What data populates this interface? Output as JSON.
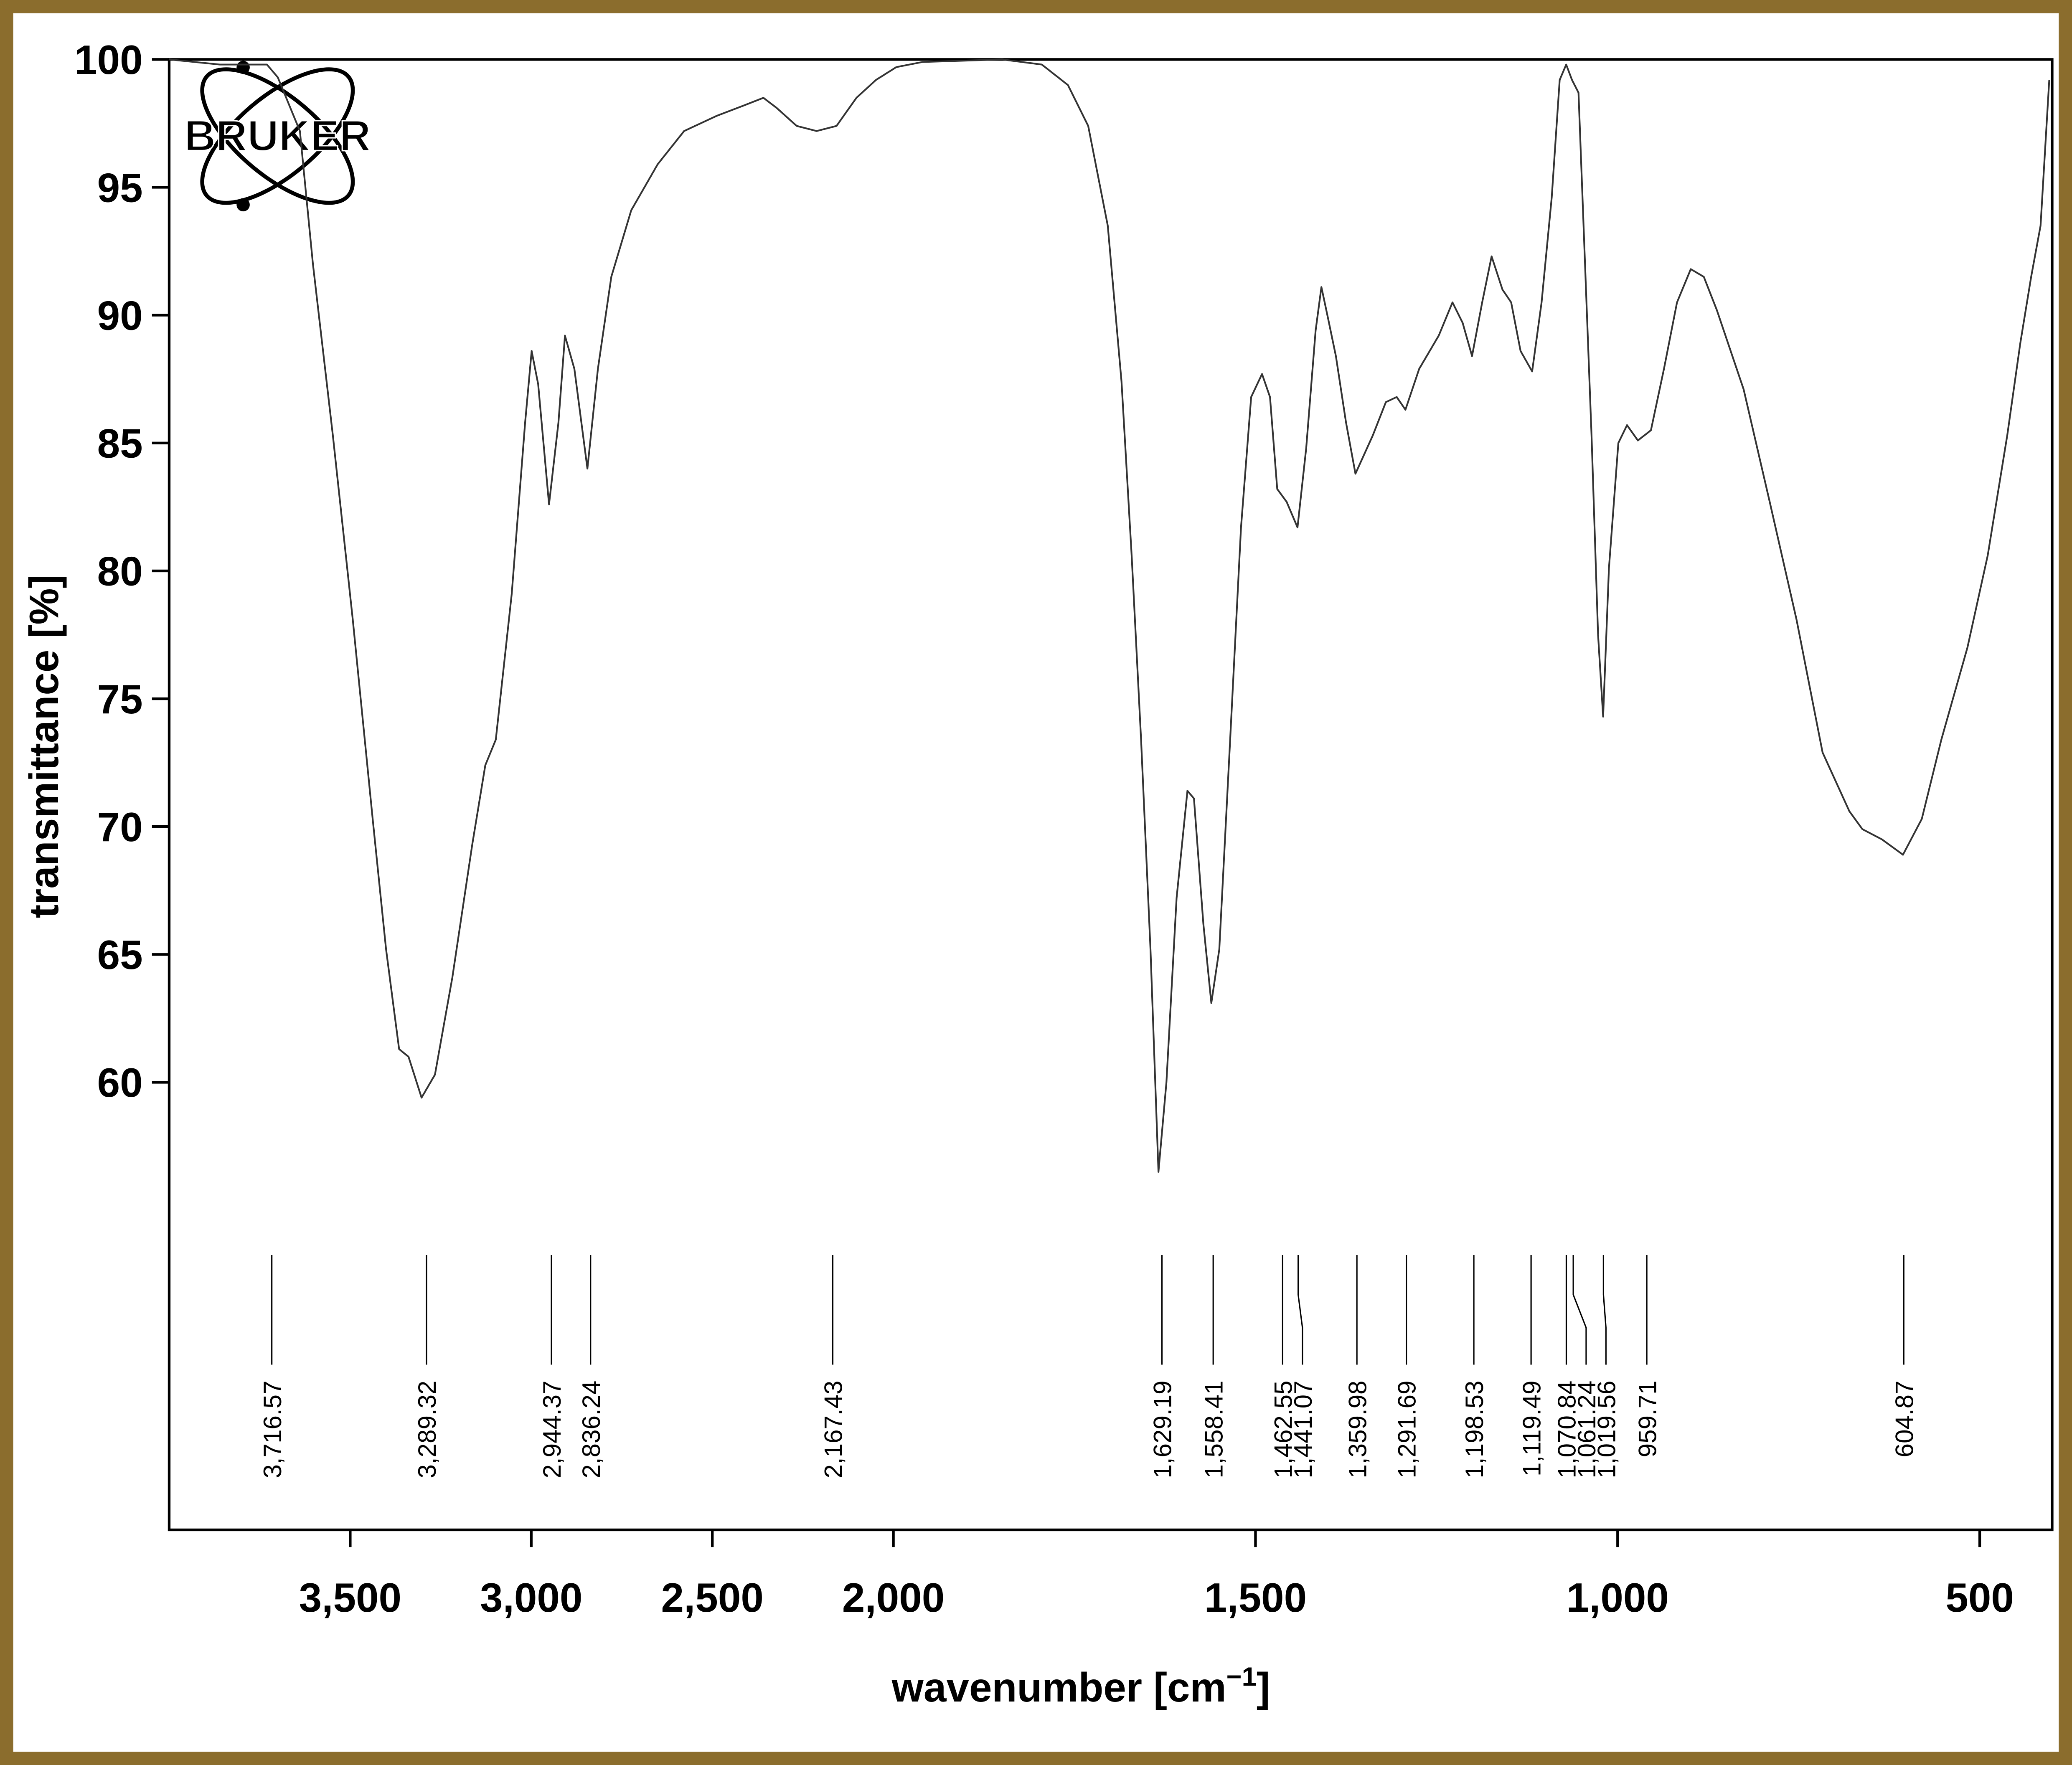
{
  "logo": "BRUKER",
  "chart_data": {
    "type": "line",
    "x_label_parts": [
      "wavenumber [cm",
      "−1",
      "]"
    ],
    "y_label": "transmittance [%]",
    "color": "#333333",
    "xlim": [
      4000,
      400
    ],
    "x_axis_compression": {
      "above": 2000,
      "factor": 0.5
    },
    "xticks": [
      {
        "value": 3500,
        "label": "3,500"
      },
      {
        "value": 3000,
        "label": "3,000"
      },
      {
        "value": 2500,
        "label": "2,500"
      },
      {
        "value": 2000,
        "label": "2,000"
      },
      {
        "value": 1500,
        "label": "1,500"
      },
      {
        "value": 1000,
        "label": "1,000"
      },
      500
    ],
    "ylim": [
      42.5,
      100
    ],
    "yticks": [
      60,
      65,
      70,
      75,
      80,
      85,
      90,
      95,
      100
    ],
    "peaks": [
      {
        "value": 3716.57,
        "label": "3,716.57"
      },
      {
        "value": 3289.32,
        "label": "3,289.32"
      },
      {
        "value": 2944.37,
        "label": "2,944.37"
      },
      {
        "value": 2836.24,
        "label": "2,836.24"
      },
      {
        "value": 2167.43,
        "label": "2,167.43"
      },
      {
        "value": 1629.19,
        "label": "1,629.19"
      },
      {
        "value": 1558.41,
        "label": "1,558.41"
      },
      {
        "value": 1462.55,
        "label": "1,462.55"
      },
      {
        "value": 1441.07,
        "label": "1,441.07"
      },
      {
        "value": 1359.98,
        "label": "1,359.98"
      },
      {
        "value": 1291.69,
        "label": "1,291.69"
      },
      {
        "value": 1198.53,
        "label": "1,198.53"
      },
      {
        "value": 1119.49,
        "label": "1,119.49"
      },
      {
        "value": 1070.84,
        "label": "1,070.84"
      },
      {
        "value": 1061.24,
        "label": "1,061.24"
      },
      {
        "value": 1019.56,
        "label": "1,019.56"
      },
      {
        "value": 959.71,
        "label": "959.71"
      },
      {
        "value": 604.87,
        "label": "604.87"
      }
    ],
    "x": [
      4000,
      3860,
      3730,
      3700,
      3639,
      3603,
      3548,
      3493,
      3438,
      3401,
      3365,
      3339,
      3303,
      3266,
      3218,
      3163,
      3127,
      3098,
      3054,
      3017,
      2999,
      2981,
      2951,
      2925,
      2907,
      2881,
      2845,
      2816,
      2779,
      2724,
      2651,
      2578,
      2487,
      2413,
      2359,
      2322,
      2267,
      2212,
      2157,
      2102,
      2048,
      1996,
      1960,
      1850,
      1795,
      1759,
      1731,
      1704,
      1685,
      1671,
      1658,
      1645,
      1634,
      1623,
      1609,
      1594,
      1585,
      1572,
      1561,
      1550,
      1535,
      1520,
      1506,
      1491,
      1480,
      1470,
      1457,
      1442,
      1430,
      1417,
      1409,
      1400,
      1389,
      1375,
      1362,
      1338,
      1320,
      1305,
      1293,
      1274,
      1247,
      1228,
      1214,
      1201,
      1187,
      1174,
      1159,
      1147,
      1134,
      1118,
      1105,
      1091,
      1080,
      1071,
      1063,
      1054,
      1045,
      1036,
      1027,
      1020,
      1012,
      999,
      987,
      972,
      954,
      936,
      918,
      899,
      881,
      863,
      826,
      790,
      753,
      717,
      680,
      662,
      635,
      606,
      580,
      553,
      517,
      489,
      462,
      444,
      429,
      416,
      404
    ],
    "values": [
      100,
      99.8,
      99.8,
      99.3,
      97.2,
      92.0,
      85.3,
      78.1,
      70.3,
      65.2,
      61.3,
      61.0,
      59.4,
      60.3,
      64.1,
      69.3,
      72.4,
      73.4,
      79.1,
      85.8,
      88.6,
      87.3,
      82.6,
      85.8,
      89.2,
      87.9,
      84.0,
      87.9,
      91.5,
      94.1,
      95.9,
      97.2,
      97.8,
      98.2,
      98.5,
      98.1,
      97.4,
      97.2,
      97.4,
      98.5,
      99.2,
      99.7,
      99.9,
      100,
      99.8,
      99.0,
      97.4,
      93.5,
      87.4,
      80.6,
      73.4,
      65.2,
      56.5,
      60.0,
      67.2,
      71.4,
      71.1,
      66.2,
      63.1,
      65.2,
      73.4,
      81.7,
      86.8,
      87.7,
      86.8,
      83.2,
      82.7,
      81.7,
      84.8,
      89.4,
      91.1,
      89.9,
      88.4,
      85.8,
      83.8,
      85.3,
      86.6,
      86.8,
      86.3,
      87.9,
      89.2,
      90.5,
      89.7,
      88.4,
      90.5,
      92.3,
      91.0,
      90.5,
      88.6,
      87.8,
      90.5,
      94.6,
      99.2,
      99.8,
      99.2,
      98.7,
      92.0,
      85.3,
      77.5,
      74.3,
      80.1,
      85.0,
      85.7,
      85.1,
      85.5,
      87.9,
      90.5,
      91.8,
      91.5,
      90.2,
      87.1,
      82.7,
      78.1,
      72.9,
      70.6,
      69.9,
      69.5,
      68.9,
      70.3,
      73.4,
      77.0,
      80.6,
      85.3,
      88.9,
      91.5,
      93.5,
      99.2
    ]
  }
}
